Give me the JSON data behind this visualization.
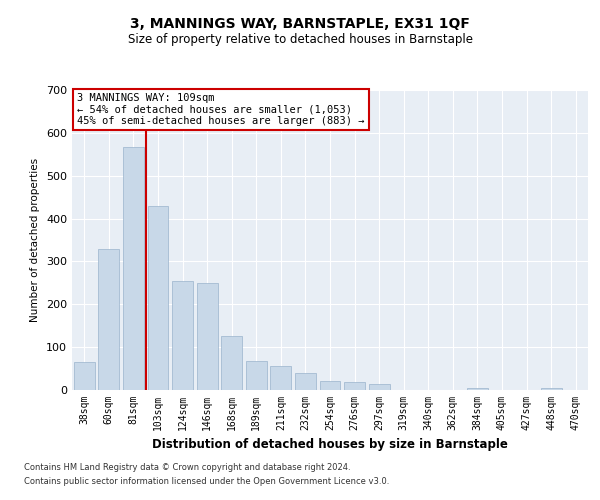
{
  "title": "3, MANNINGS WAY, BARNSTAPLE, EX31 1QF",
  "subtitle": "Size of property relative to detached houses in Barnstaple",
  "xlabel": "Distribution of detached houses by size in Barnstaple",
  "ylabel": "Number of detached properties",
  "categories": [
    "38sqm",
    "60sqm",
    "81sqm",
    "103sqm",
    "124sqm",
    "146sqm",
    "168sqm",
    "189sqm",
    "211sqm",
    "232sqm",
    "254sqm",
    "276sqm",
    "297sqm",
    "319sqm",
    "340sqm",
    "362sqm",
    "384sqm",
    "405sqm",
    "427sqm",
    "448sqm",
    "470sqm"
  ],
  "values": [
    65,
    328,
    568,
    430,
    255,
    250,
    125,
    68,
    55,
    40,
    22,
    18,
    15,
    0,
    0,
    0,
    5,
    0,
    0,
    5,
    0
  ],
  "bar_color": "#c8d8e8",
  "bar_edge_color": "#9ab4cc",
  "vline_x": 2.5,
  "vline_color": "#cc0000",
  "annotation_text": "3 MANNINGS WAY: 109sqm\n← 54% of detached houses are smaller (1,053)\n45% of semi-detached houses are larger (883) →",
  "annotation_box_color": "#ffffff",
  "annotation_box_edge": "#cc0000",
  "ylim": [
    0,
    700
  ],
  "yticks": [
    0,
    100,
    200,
    300,
    400,
    500,
    600,
    700
  ],
  "background_color": "#e8eef5",
  "footnote1": "Contains HM Land Registry data © Crown copyright and database right 2024.",
  "footnote2": "Contains public sector information licensed under the Open Government Licence v3.0."
}
